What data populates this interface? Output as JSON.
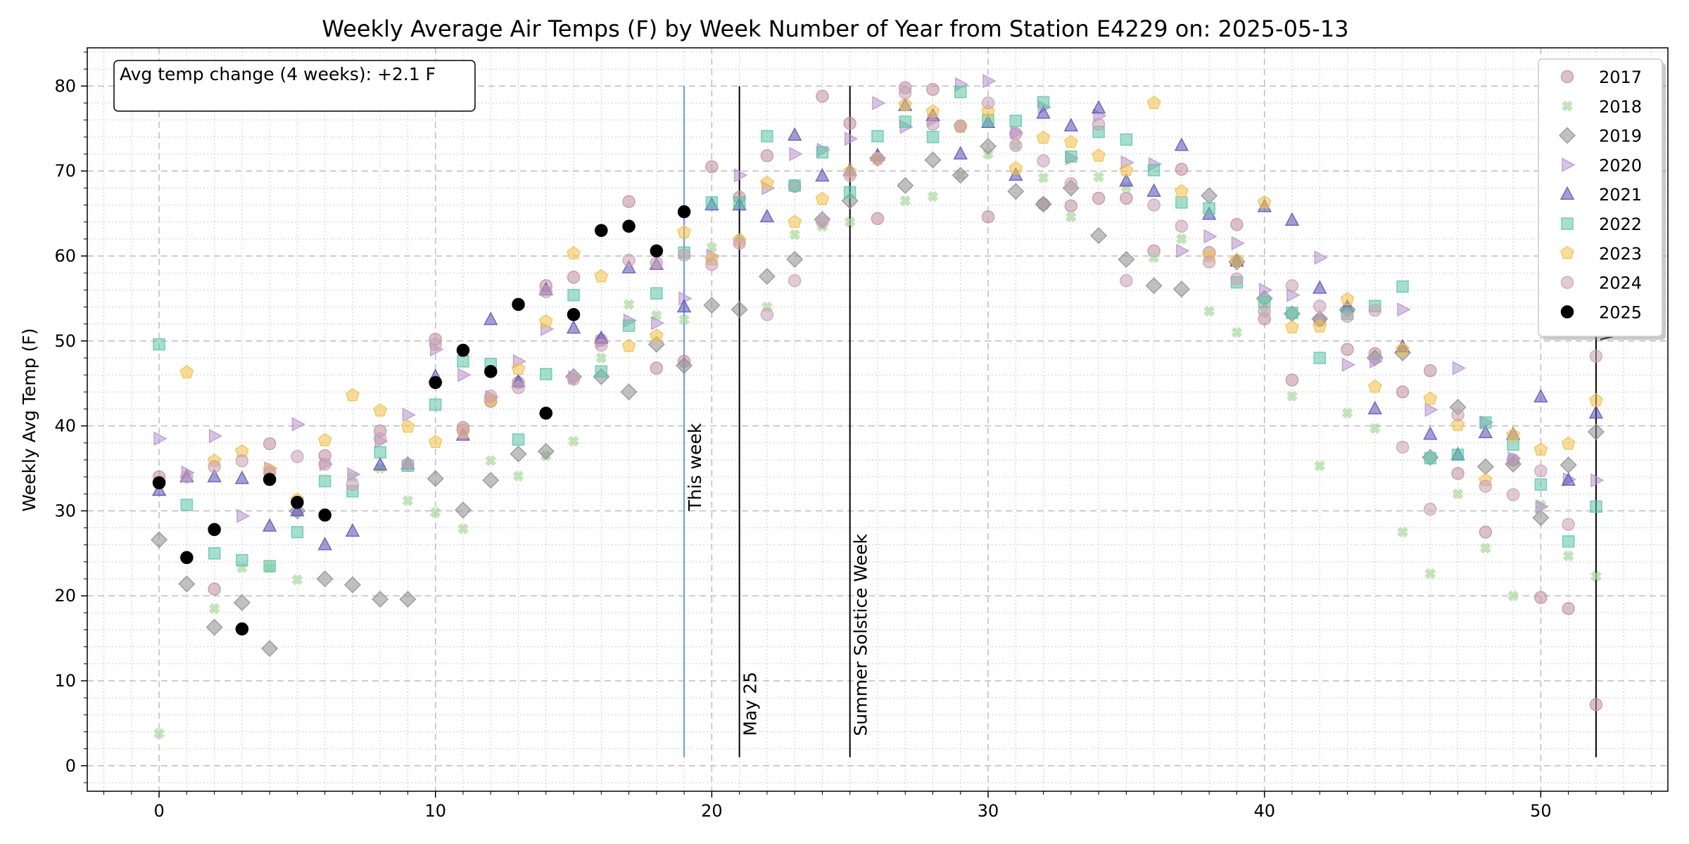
{
  "chart_data": {
    "type": "scatter",
    "title": "Weekly Average Air Temps (F) by Week Number of Year from Station E4229 on: 2025-05-13",
    "xlabel": "",
    "ylabel": "Weekly Avg Temp (F)",
    "xlim": [
      -2.6,
      54.6
    ],
    "ylim": [
      -3,
      84.5
    ],
    "xticks": [
      0,
      10,
      20,
      30,
      40,
      50
    ],
    "yticks": [
      0,
      10,
      20,
      30,
      40,
      50,
      60,
      70,
      80
    ],
    "grid": true,
    "legend_position": "top-right",
    "annotation": "Avg temp change (4 weeks): +2.1 F",
    "vertical_lines": [
      {
        "x": 19,
        "label": "This week",
        "color": "#6495ed",
        "label_y": 30
      },
      {
        "x": 21,
        "label": "May 25",
        "color": "#000000",
        "label_y": 3.5
      },
      {
        "x": 25,
        "label": "Summer Solstice Week",
        "color": "#000000",
        "label_y": 3.5
      },
      {
        "x": 52,
        "label": "W",
        "color": "#000000",
        "label_y": 50
      }
    ],
    "series": [
      {
        "name": "2017",
        "marker": "circle",
        "color": "#c08ea0",
        "x": [
          0,
          2,
          4,
          6,
          8,
          10,
          11,
          12,
          13,
          14,
          15,
          16,
          17,
          18,
          19,
          20,
          21,
          22,
          23,
          24,
          25,
          26,
          27,
          28,
          29,
          30,
          31,
          32,
          33,
          34,
          35,
          36,
          37,
          38,
          39,
          40,
          41,
          42,
          43,
          44,
          45,
          46,
          47,
          48,
          49,
          50,
          51,
          52
        ],
        "y": [
          34,
          20.8,
          37.9,
          36.5,
          39.4,
          50.2,
          39.8,
          42.9,
          45.1,
          56.5,
          57.5,
          50.1,
          66.4,
          46.8,
          47.6,
          70.5,
          66.9,
          71.8,
          68.2,
          78.8,
          75.6,
          64.4,
          79.8,
          79.6,
          75.3,
          64.6,
          74.4,
          66.1,
          65.9,
          66.8,
          66.8,
          60.6,
          70.2,
          60.4,
          63.7,
          52.6,
          45.4,
          52.4,
          49,
          48.5,
          44,
          46.5,
          34.4,
          27.5,
          36,
          19.8,
          18.5,
          7.2
        ]
      },
      {
        "name": "2018",
        "marker": "x",
        "color": "#a9d99c",
        "x": [
          0,
          1,
          2,
          3,
          4,
          5,
          6,
          7,
          8,
          9,
          10,
          11,
          12,
          13,
          14,
          15,
          16,
          17,
          18,
          19,
          20,
          21,
          22,
          23,
          24,
          25,
          26,
          27,
          28,
          29,
          30,
          31,
          32,
          33,
          34,
          35,
          36,
          37,
          38,
          39,
          40,
          41,
          42,
          43,
          44,
          45,
          46,
          47,
          48,
          49,
          50,
          51,
          52
        ],
        "y": [
          3.8,
          24.5,
          18.5,
          23.3,
          23.3,
          21.9,
          29.7,
          34,
          35,
          31.2,
          29.8,
          27.9,
          35.9,
          34.1,
          36.5,
          38.2,
          48,
          54.3,
          53,
          52.5,
          61,
          62,
          54,
          62.5,
          63.5,
          64,
          71.5,
          66.5,
          67,
          69.5,
          72,
          73,
          69.2,
          64.6,
          69.3,
          68.1,
          59.8,
          62,
          53.5,
          51,
          53.5,
          43.5,
          35.3,
          41.5,
          39.7,
          27.5,
          22.6,
          32,
          25.6,
          20,
          30.7,
          24.7,
          22.3
        ]
      },
      {
        "name": "2019",
        "marker": "diamond",
        "color": "#8e8e8e",
        "x": [
          0,
          1,
          2,
          3,
          4,
          5,
          6,
          7,
          8,
          9,
          10,
          11,
          12,
          13,
          14,
          15,
          16,
          17,
          18,
          19,
          20,
          21,
          22,
          23,
          24,
          25,
          26,
          27,
          28,
          29,
          30,
          31,
          32,
          33,
          34,
          35,
          36,
          37,
          38,
          39,
          40,
          41,
          42,
          43,
          44,
          45,
          46,
          47,
          48,
          49,
          50,
          51,
          52
        ],
        "y": [
          26.6,
          21.4,
          16.3,
          19.2,
          13.8,
          30,
          22,
          21.3,
          19.6,
          19.6,
          33.8,
          30.1,
          33.6,
          36.7,
          37,
          45.8,
          45.8,
          44,
          49.6,
          47.1,
          54.2,
          53.7,
          57.6,
          59.6,
          64.3,
          66.5,
          71.5,
          68.3,
          71.3,
          69.5,
          72.9,
          67.6,
          66.1,
          68,
          62.4,
          59.6,
          56.5,
          56.1,
          67.1,
          59.3,
          55,
          53.2,
          52.6,
          53.7,
          48,
          48.6,
          36.3,
          42.2,
          35.2,
          35.5,
          29.2,
          35.4,
          39.3
        ]
      },
      {
        "name": "2020",
        "marker": "triangle-right",
        "color": "#b693cc",
        "x": [
          0,
          1,
          2,
          3,
          4,
          5,
          6,
          7,
          8,
          9,
          10,
          11,
          12,
          13,
          14,
          15,
          16,
          17,
          18,
          19,
          20,
          21,
          22,
          23,
          24,
          25,
          26,
          27,
          28,
          29,
          30,
          31,
          32,
          33,
          34,
          35,
          36,
          37,
          38,
          39,
          40,
          41,
          42,
          43,
          44,
          45,
          46,
          47,
          48,
          49,
          50,
          51,
          52
        ],
        "y": [
          38.5,
          34.5,
          38.8,
          29.4,
          35,
          40.2,
          35.5,
          34.3,
          38.2,
          41.3,
          49,
          46,
          43.4,
          47.6,
          51.4,
          45.7,
          49.9,
          52.4,
          52.1,
          55,
          60,
          69.5,
          68,
          72,
          72.5,
          73.8,
          78,
          75.2,
          76,
          80.2,
          80.6,
          74.5,
          77.5,
          71.5,
          76.5,
          71,
          70.8,
          60.6,
          62.3,
          61.5,
          56,
          55.4,
          59.8,
          47.2,
          47.6,
          53.7,
          41.9,
          46.8,
          40.4,
          36.2,
          30.5,
          33.7,
          33.6
        ]
      },
      {
        "name": "2021",
        "marker": "triangle-up",
        "color": "#5a4fb5",
        "x": [
          0,
          1,
          2,
          3,
          4,
          5,
          6,
          7,
          8,
          9,
          10,
          11,
          12,
          13,
          14,
          15,
          16,
          17,
          18,
          19,
          20,
          21,
          22,
          23,
          24,
          25,
          26,
          27,
          28,
          29,
          30,
          31,
          32,
          33,
          34,
          35,
          36,
          37,
          38,
          39,
          40,
          41,
          42,
          43,
          44,
          45,
          46,
          47,
          48,
          49,
          50,
          51,
          52
        ],
        "y": [
          32.4,
          34,
          34,
          33.8,
          28.2,
          30,
          26,
          27.6,
          35.4,
          35.5,
          45.8,
          38.9,
          52.5,
          45.2,
          56,
          51.5,
          50.3,
          58.6,
          59,
          54,
          66,
          66,
          64.6,
          74.2,
          69.4,
          70.1,
          71.8,
          77.7,
          76.5,
          72,
          75.7,
          69.5,
          76.8,
          75.3,
          77.4,
          68.8,
          67.6,
          73,
          64.9,
          59.4,
          65.8,
          64.2,
          56.2,
          54,
          42,
          49.3,
          39,
          36.6,
          39.2,
          39,
          43.4,
          33.6,
          41.5
        ]
      },
      {
        "name": "2022",
        "marker": "square",
        "color": "#5dc5a5",
        "x": [
          0,
          1,
          2,
          3,
          4,
          5,
          6,
          7,
          8,
          9,
          10,
          11,
          12,
          13,
          14,
          15,
          16,
          17,
          18,
          19,
          20,
          21,
          22,
          23,
          24,
          25,
          26,
          27,
          28,
          29,
          30,
          31,
          32,
          33,
          34,
          35,
          36,
          37,
          38,
          39,
          40,
          41,
          42,
          43,
          44,
          45,
          46,
          47,
          48,
          49,
          50,
          51,
          52
        ],
        "y": [
          49.6,
          30.7,
          25,
          24.2,
          23.5,
          27.5,
          33.5,
          32.3,
          36.9,
          35.3,
          42.5,
          47.6,
          47.3,
          38.4,
          46.1,
          55.4,
          46.4,
          51.8,
          55.6,
          60.4,
          66.3,
          66.3,
          74.1,
          68.3,
          72.2,
          67.5,
          74.1,
          75.8,
          74,
          79.3,
          76,
          75.9,
          78.1,
          71.7,
          74.6,
          73.7,
          70.1,
          66.3,
          65.6,
          56.9,
          54.6,
          53.3,
          48,
          53.2,
          54.1,
          56.4,
          36.2,
          36.6,
          40.4,
          37.8,
          33.1,
          26.4,
          30.5
        ]
      },
      {
        "name": "2023",
        "marker": "pentagon",
        "color": "#f3bf4a",
        "x": [
          0,
          1,
          2,
          3,
          4,
          5,
          6,
          7,
          8,
          9,
          10,
          11,
          12,
          13,
          14,
          15,
          16,
          17,
          18,
          19,
          20,
          21,
          22,
          23,
          24,
          25,
          26,
          27,
          28,
          29,
          30,
          31,
          32,
          33,
          34,
          35,
          36,
          37,
          38,
          39,
          40,
          41,
          42,
          43,
          44,
          45,
          46,
          47,
          48,
          49,
          50,
          51,
          52
        ],
        "y": [
          33.3,
          46.3,
          35.9,
          37,
          34.8,
          31.3,
          38.3,
          43.6,
          41.8,
          39.9,
          38.1,
          39.3,
          43.1,
          46.7,
          52.3,
          60.3,
          57.6,
          49.4,
          50.6,
          62.8,
          59.6,
          61.8,
          68.6,
          64,
          66.7,
          69.9,
          71.4,
          77.8,
          77,
          75.2,
          77,
          70.3,
          73.9,
          73.4,
          71.8,
          70.1,
          78,
          67.6,
          60,
          59.5,
          66.3,
          51.6,
          51.7,
          54.9,
          44.6,
          49,
          43.2,
          40.1,
          33.6,
          38.9,
          37.2,
          37.9,
          43
        ]
      },
      {
        "name": "2024",
        "marker": "circle",
        "color": "#c9a0b5",
        "x": [
          0,
          1,
          2,
          3,
          4,
          5,
          6,
          7,
          8,
          9,
          10,
          11,
          12,
          13,
          14,
          15,
          16,
          17,
          18,
          19,
          20,
          21,
          22,
          23,
          24,
          25,
          26,
          27,
          28,
          29,
          30,
          31,
          32,
          33,
          34,
          35,
          36,
          37,
          38,
          39,
          40,
          41,
          42,
          43,
          44,
          45,
          46,
          47,
          48,
          49,
          50,
          51,
          52
        ],
        "y": [
          33.4,
          34,
          35.2,
          35.9,
          34.5,
          36.4,
          35.5,
          33.1,
          38.5,
          35.5,
          49.6,
          39.5,
          43.5,
          44.5,
          55.8,
          45.5,
          49.5,
          59.5,
          59.2,
          60.1,
          59,
          61.5,
          53.1,
          57.1,
          64,
          69.5,
          71.5,
          79.2,
          75.5,
          75.3,
          78,
          73,
          71.2,
          68.5,
          75.5,
          57.1,
          66,
          63.5,
          59.3,
          57.3,
          53.5,
          56.5,
          54.1,
          52.9,
          53.6,
          37.5,
          30.2,
          41.3,
          32.9,
          31.9,
          34.7,
          28.4,
          48.2
        ]
      },
      {
        "name": "2025",
        "marker": "circle",
        "color": "#000000",
        "x": [
          0,
          1,
          2,
          3,
          4,
          5,
          6,
          10,
          11,
          12,
          13,
          14,
          15,
          16,
          17,
          18,
          19
        ],
        "y": [
          33.3,
          24.5,
          27.8,
          16.1,
          33.7,
          31,
          29.5,
          45.1,
          48.9,
          46.4,
          54.3,
          41.5,
          53.1,
          63,
          63.5,
          60.6,
          65.2
        ]
      }
    ]
  }
}
